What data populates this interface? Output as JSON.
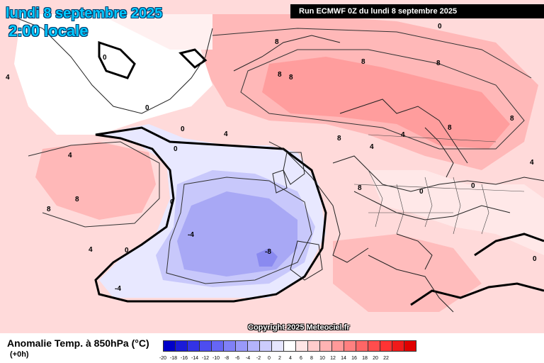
{
  "title": {
    "date": "lundi 8 septembre 2025",
    "local": "2:00 locale"
  },
  "run_label": "Run ECMWF 0Z du lundi 8 septembre 2025",
  "copyright": "Copyright 2025 Meteociel.fr",
  "parameter": "Anomalie Temp. à 850hPa (°C)",
  "lead_time": "(+0h)",
  "colors": {
    "contour": "#000000",
    "land_border": "#222222"
  },
  "legend": {
    "labels": [
      "-20",
      "-18",
      "-16",
      "-14",
      "-12",
      "-10",
      "-8",
      "-6",
      "-4",
      "-2",
      "0",
      "2",
      "4",
      "6",
      "8",
      "10",
      "12",
      "14",
      "16",
      "18",
      "20",
      "22"
    ],
    "colors": [
      "#0000c8",
      "#1a1ad8",
      "#3333e6",
      "#4d4df0",
      "#6666f5",
      "#8080f8",
      "#9999fa",
      "#b3b3fc",
      "#ccccfd",
      "#e6e6fe",
      "#ffffff",
      "#ffe6e6",
      "#ffcccc",
      "#ffb3b3",
      "#ff9999",
      "#ff8080",
      "#ff6666",
      "#ff4d4d",
      "#ff3333",
      "#f01a1a",
      "#e00000"
    ]
  },
  "contour_labels": [
    {
      "text": "4"
    },
    {
      "text": "4"
    },
    {
      "text": "4"
    },
    {
      "text": "0"
    },
    {
      "text": "0"
    },
    {
      "text": "0"
    },
    {
      "text": "8"
    },
    {
      "text": "8"
    },
    {
      "text": "8"
    },
    {
      "text": "8"
    },
    {
      "text": "8"
    },
    {
      "text": "8"
    },
    {
      "text": "8"
    },
    {
      "text": "8"
    },
    {
      "text": "4"
    },
    {
      "text": "0"
    },
    {
      "text": "-4"
    },
    {
      "text": "-8"
    },
    {
      "text": "-4"
    },
    {
      "text": "0"
    },
    {
      "text": "0"
    },
    {
      "text": "4"
    },
    {
      "text": "8"
    },
    {
      "text": "8"
    },
    {
      "text": "4"
    },
    {
      "text": "0"
    },
    {
      "text": "0"
    },
    {
      "text": "0"
    },
    {
      "text": "8"
    },
    {
      "text": "4"
    },
    {
      "text": "0"
    }
  ]
}
